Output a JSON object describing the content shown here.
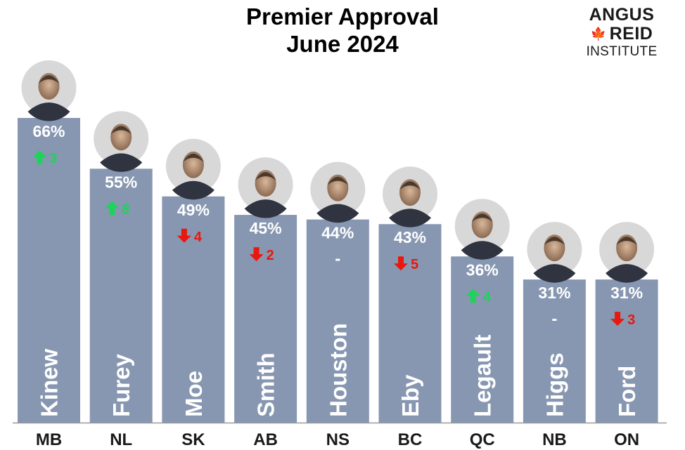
{
  "chart_data": {
    "type": "bar",
    "title": "Premier Approval",
    "subtitle": "June 2024",
    "categories": [
      "MB",
      "NL",
      "SK",
      "AB",
      "NS",
      "BC",
      "QC",
      "NB",
      "ON"
    ],
    "names": [
      "Kinew",
      "Furey",
      "Moe",
      "Smith",
      "Houston",
      "Eby",
      "Legault",
      "Higgs",
      "Ford"
    ],
    "values": [
      66,
      55,
      49,
      45,
      44,
      43,
      36,
      31,
      31
    ],
    "value_labels": [
      "66%",
      "55%",
      "49%",
      "45%",
      "44%",
      "43%",
      "36%",
      "31%",
      "31%"
    ],
    "changes": [
      {
        "dir": "up",
        "value": "3"
      },
      {
        "dir": "up",
        "value": "8"
      },
      {
        "dir": "down",
        "value": "4"
      },
      {
        "dir": "down",
        "value": "2"
      },
      {
        "dir": "none",
        "value": "-"
      },
      {
        "dir": "down",
        "value": "5"
      },
      {
        "dir": "up",
        "value": "4"
      },
      {
        "dir": "none",
        "value": "-"
      },
      {
        "dir": "down",
        "value": "3"
      }
    ],
    "ylim": [
      0,
      66
    ],
    "grid": false,
    "colors": {
      "bar": "#8797b1",
      "label": "#ffffff",
      "up": "#1fd25a",
      "down": "#e8180f",
      "baseline": "#9a9a9a"
    }
  },
  "logo": {
    "line1": "ANGUS",
    "line2": "REID",
    "line3": "INSTITUTE",
    "leaf_icon": "maple-leaf-icon"
  }
}
